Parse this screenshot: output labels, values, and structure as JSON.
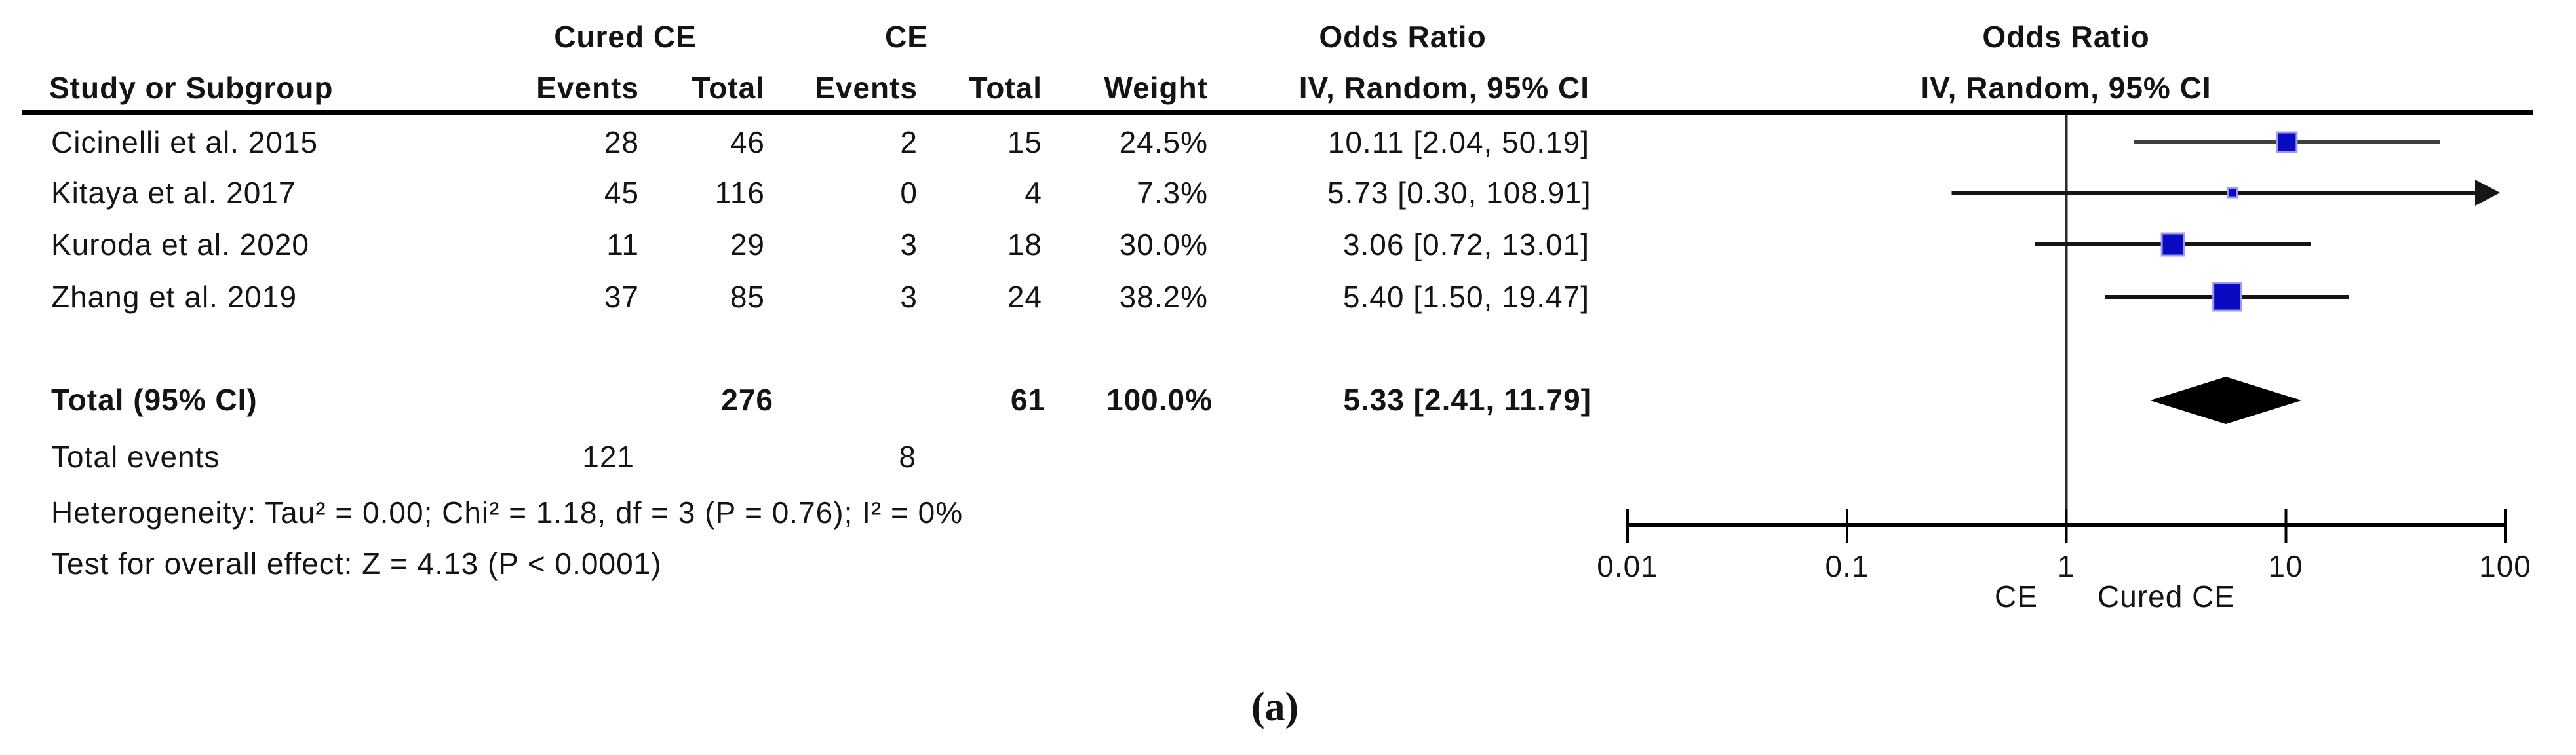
{
  "figure": {
    "caption": "(a)"
  },
  "table": {
    "header": {
      "group1": "Cured CE",
      "group2": "CE",
      "or_col": "Odds Ratio",
      "study": "Study or Subgroup",
      "events1": "Events",
      "total1": "Total",
      "events2": "Events",
      "total2": "Total",
      "weight": "Weight",
      "method": "IV, Random, 95% CI"
    },
    "plot_header": {
      "title": "Odds Ratio",
      "subtitle": "IV, Random, 95% CI"
    },
    "rows": [
      {
        "study": "Cicinelli et al. 2015",
        "e1": "28",
        "t1": "46",
        "e2": "2",
        "t2": "15",
        "weight": "24.5%",
        "or_ci": "10.11 [2.04, 50.19]"
      },
      {
        "study": "Kitaya et al. 2017",
        "e1": "45",
        "t1": "116",
        "e2": "0",
        "t2": "4",
        "weight": "7.3%",
        "or_ci": "5.73 [0.30, 108.91]"
      },
      {
        "study": "Kuroda et al. 2020",
        "e1": "11",
        "t1": "29",
        "e2": "3",
        "t2": "18",
        "weight": "30.0%",
        "or_ci": "3.06 [0.72, 13.01]"
      },
      {
        "study": "Zhang et al. 2019",
        "e1": "37",
        "t1": "85",
        "e2": "3",
        "t2": "24",
        "weight": "38.2%",
        "or_ci": "5.40 [1.50, 19.47]"
      }
    ],
    "total": {
      "label": "Total (95% CI)",
      "t1": "276",
      "t2": "61",
      "weight": "100.0%",
      "or_ci": "5.33 [2.41, 11.79]"
    },
    "total_events": {
      "label": "Total events",
      "e1": "121",
      "e2": "8"
    },
    "heterogeneity": "Heterogeneity: Tau² = 0.00; Chi² = 1.18, df = 3 (P = 0.76); I² = 0%",
    "overall_effect": "Test for overall effect: Z = 4.13 (P < 0.0001)"
  },
  "chart_data": {
    "type": "forest",
    "title": "Odds Ratio",
    "subtitle": "IV, Random, 95% CI",
    "x_scale": "log10",
    "xlim": [
      0.01,
      100
    ],
    "axis": {
      "ticks": [
        0.01,
        0.1,
        1,
        10,
        100
      ],
      "tick_labels": [
        "0.01",
        "0.1",
        "1",
        "10",
        "100"
      ],
      "null_line": 1,
      "left_label": "CE",
      "right_label": "Cured CE"
    },
    "studies": [
      {
        "name": "Cicinelli et al. 2015",
        "or": 10.11,
        "ci_low": 2.04,
        "ci_high": 50.19,
        "weight_pct": 24.5
      },
      {
        "name": "Kitaya et al. 2017",
        "or": 5.73,
        "ci_low": 0.3,
        "ci_high": 108.91,
        "weight_pct": 7.3
      },
      {
        "name": "Kuroda et al. 2020",
        "or": 3.06,
        "ci_low": 0.72,
        "ci_high": 13.01,
        "weight_pct": 30.0
      },
      {
        "name": "Zhang et al. 2019",
        "or": 5.4,
        "ci_low": 1.5,
        "ci_high": 19.47,
        "weight_pct": 38.2
      }
    ],
    "total": {
      "or": 5.33,
      "ci_low": 2.41,
      "ci_high": 11.79
    }
  },
  "colors": {
    "square_fill": "#0a0ac2",
    "square_border": "#9a9aee",
    "ci_line": "#161616",
    "ci_line_first": "#3f3f3f",
    "diamond": "#000000",
    "axis": "#000000",
    "null_line": "#2b2b2b",
    "text": "#141414"
  }
}
